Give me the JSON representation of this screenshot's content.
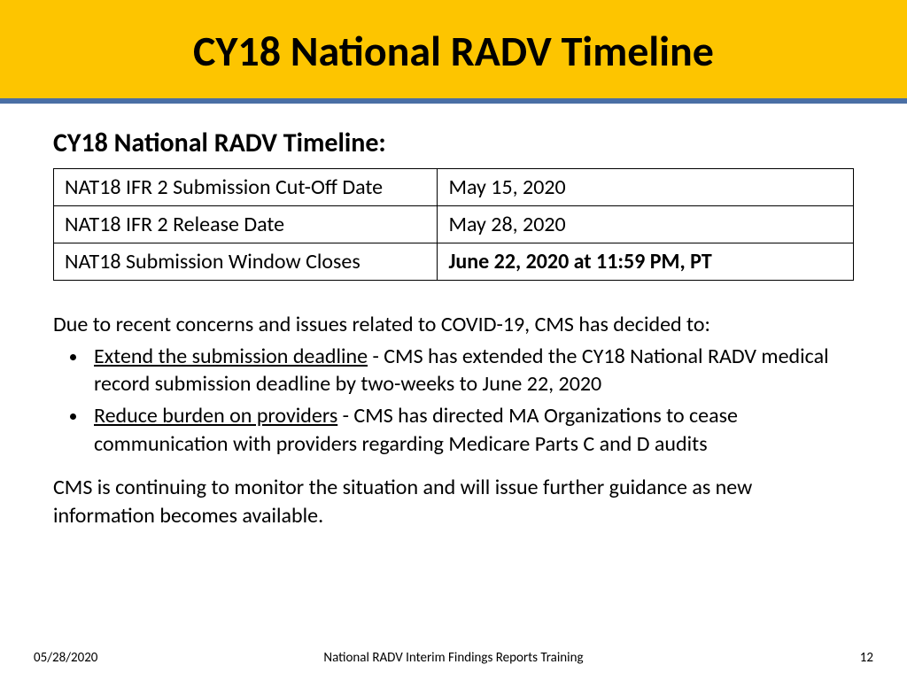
{
  "colors": {
    "title_band_bg": "#fdc500",
    "divider": "#4a6fa5",
    "text": "#000000",
    "background": "#ffffff",
    "table_border": "#000000"
  },
  "title": "CY18 National RADV Timeline",
  "subheading": "CY18 National RADV Timeline:",
  "table": {
    "rows": [
      {
        "label": "NAT18 IFR 2 Submission Cut-Off Date",
        "value": "May 15, 2020",
        "bold": false
      },
      {
        "label": "NAT18 IFR 2 Release Date",
        "value": "May 28, 2020",
        "bold": false
      },
      {
        "label": "NAT18 Submission Window Closes",
        "value": "June 22, 2020 at 11:59 PM, PT",
        "bold": true
      }
    ],
    "col_widths_pct": [
      48,
      52
    ],
    "font_size_pt": 18
  },
  "intro": "Due to recent concerns and issues related to COVID-19, CMS has decided to:",
  "bullets": [
    {
      "lead": "Extend the submission deadline",
      "rest": " - CMS has extended the CY18 National RADV medical record submission deadline by two-weeks to June 22, 2020"
    },
    {
      "lead": "Reduce burden on providers",
      "rest": " - CMS has directed MA Organizations to cease communication with providers regarding Medicare Parts C and D audits"
    }
  ],
  "closing": "CMS is continuing to monitor the situation and will issue further guidance as new information becomes available.",
  "footer": {
    "date": "05/28/2020",
    "center": "National RADV Interim Findings Reports Training",
    "page": "12"
  },
  "typography": {
    "title_fontsize": 48,
    "subheading_fontsize": 30,
    "body_fontsize": 24,
    "footer_fontsize": 15,
    "title_weight": 700
  }
}
